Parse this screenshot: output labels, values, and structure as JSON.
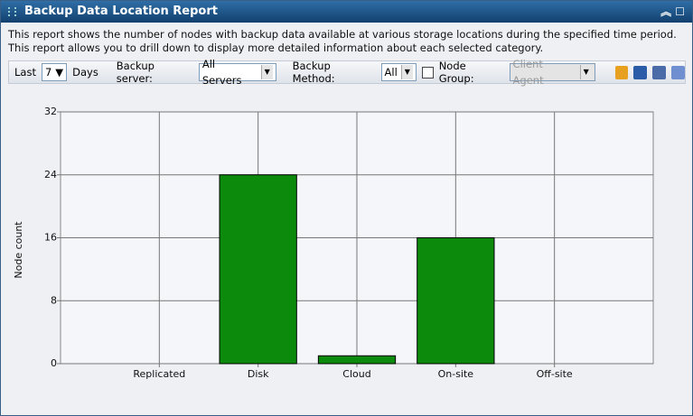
{
  "header": {
    "title": "Backup Data Location Report"
  },
  "description": "This report shows the number of nodes with backup data available at various storage locations during the specified time period. This report allows you to drill down to display more detailed information about each selected category.",
  "toolbar": {
    "last_label": "Last",
    "days_value": "7",
    "days_label": "Days",
    "server_label": "Backup server:",
    "server_value": "All Servers",
    "method_label": "Backup Method:",
    "method_value": "All",
    "group_label": "Node Group:",
    "group_value": "Client Agent"
  },
  "chart_data": {
    "type": "bar",
    "y_label": "Node count",
    "categories": [
      "Replicated",
      "Disk",
      "Cloud",
      "On-site",
      "Off-site"
    ],
    "values": [
      0,
      24,
      1,
      16,
      0
    ],
    "color": "#0b8a0b",
    "ylim": [
      0,
      32
    ],
    "yticks": [
      0,
      8,
      16,
      24,
      32
    ],
    "grid": true
  }
}
